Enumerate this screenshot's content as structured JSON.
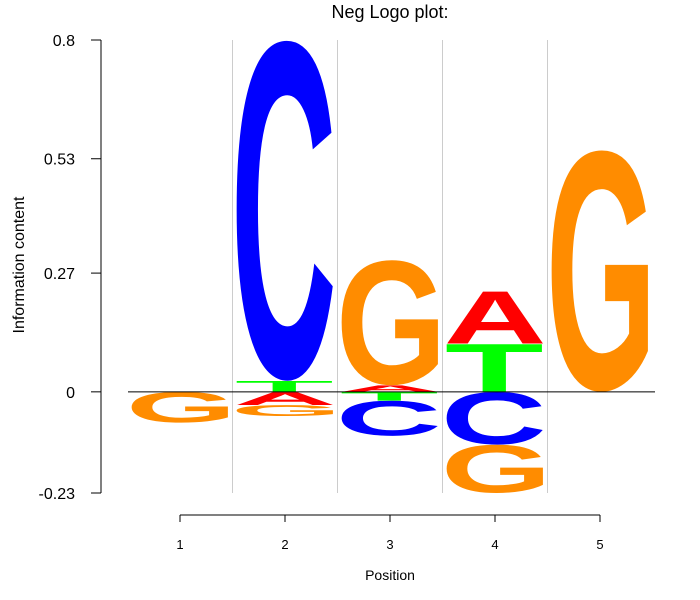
{
  "chart_data": {
    "type": "sequence-logo",
    "title": "Neg Logo plot:",
    "xlabel": "Position",
    "ylabel": "Information content",
    "ylim": [
      -0.23,
      0.8
    ],
    "y_ticks": [
      "0.8",
      "0.53",
      "0.27",
      "0",
      "-0.23"
    ],
    "y_tick_values": [
      0.8,
      0.53,
      0.27,
      0,
      -0.23
    ],
    "x_ticks": [
      "1",
      "2",
      "3",
      "4",
      "5"
    ],
    "grid": "vertical separators between positions",
    "colors": {
      "A": "#ff0000",
      "C": "#0000ff",
      "G": "#ff8c00",
      "T": "#00ff00",
      "baseline": "#000000",
      "grid": "#cccccc"
    },
    "positions": [
      {
        "pos": "1",
        "stack": [
          {
            "letter": "G",
            "from": -0.07,
            "to": 0
          }
        ]
      },
      {
        "pos": "2",
        "stack": [
          {
            "letter": "G",
            "from": -0.055,
            "to": -0.03
          },
          {
            "letter": "A",
            "from": -0.03,
            "to": 0
          },
          {
            "letter": "T",
            "from": 0,
            "to": 0.025
          },
          {
            "letter": "C",
            "from": 0.025,
            "to": 0.8
          }
        ]
      },
      {
        "pos": "3",
        "stack": [
          {
            "letter": "C",
            "from": -0.1,
            "to": -0.02
          },
          {
            "letter": "T",
            "from": -0.02,
            "to": 0
          },
          {
            "letter": "A",
            "from": 0,
            "to": 0.015
          },
          {
            "letter": "G",
            "from": 0.015,
            "to": 0.3
          }
        ]
      },
      {
        "pos": "4",
        "stack": [
          {
            "letter": "G",
            "from": -0.23,
            "to": -0.12
          },
          {
            "letter": "C",
            "from": -0.12,
            "to": 0
          },
          {
            "letter": "T",
            "from": 0,
            "to": 0.11
          },
          {
            "letter": "A",
            "from": 0.11,
            "to": 0.23
          }
        ]
      },
      {
        "pos": "5",
        "stack": [
          {
            "letter": "G",
            "from": 0,
            "to": 0.55
          }
        ]
      }
    ]
  }
}
